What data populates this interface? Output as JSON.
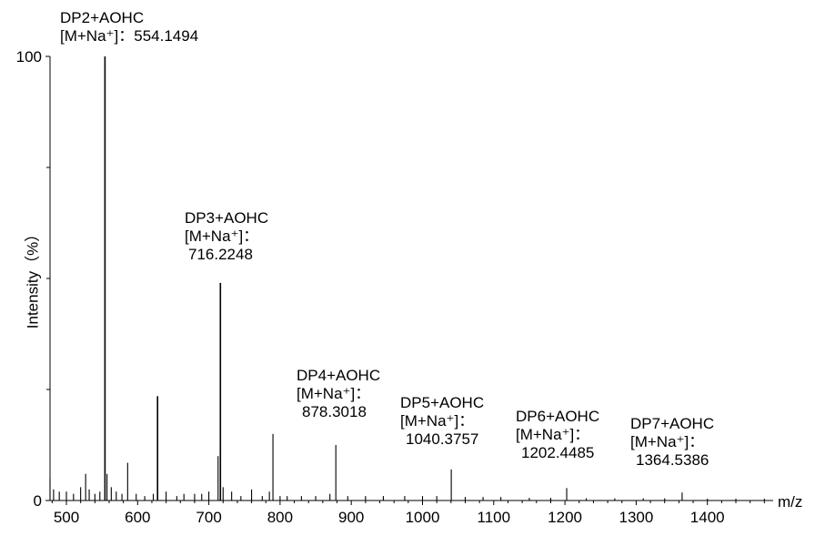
{
  "chart_data": {
    "type": "bar",
    "title": "",
    "xlabel": "m/z",
    "ylabel": "Intensity（%）",
    "xlim": [
      475,
      1495
    ],
    "ylim": [
      0,
      100
    ],
    "grid": false,
    "x_ticks": [
      "500",
      "600",
      "700",
      "800",
      "900",
      "1000",
      "1100",
      "1200",
      "1300",
      "1400"
    ],
    "y_ticks": [
      "0",
      "100"
    ],
    "peaks": [
      {
        "x": 477,
        "y": 5
      },
      {
        "x": 482,
        "y": 2.5
      },
      {
        "x": 490,
        "y": 2
      },
      {
        "x": 500,
        "y": 2
      },
      {
        "x": 510,
        "y": 1.5
      },
      {
        "x": 520,
        "y": 3
      },
      {
        "x": 527,
        "y": 6
      },
      {
        "x": 532,
        "y": 2.5
      },
      {
        "x": 540,
        "y": 1.5
      },
      {
        "x": 547,
        "y": 2
      },
      {
        "x": 554.1494,
        "y": 100
      },
      {
        "x": 557,
        "y": 6
      },
      {
        "x": 563,
        "y": 3
      },
      {
        "x": 570,
        "y": 2
      },
      {
        "x": 578,
        "y": 1.5
      },
      {
        "x": 586,
        "y": 8.5
      },
      {
        "x": 598,
        "y": 1.5
      },
      {
        "x": 610,
        "y": 1
      },
      {
        "x": 622,
        "y": 1.5
      },
      {
        "x": 628,
        "y": 23.5
      },
      {
        "x": 640,
        "y": 2
      },
      {
        "x": 655,
        "y": 1
      },
      {
        "x": 665,
        "y": 1.5
      },
      {
        "x": 680,
        "y": 1.5
      },
      {
        "x": 690,
        "y": 1.5
      },
      {
        "x": 700,
        "y": 2
      },
      {
        "x": 713,
        "y": 10
      },
      {
        "x": 716.2248,
        "y": 49
      },
      {
        "x": 720,
        "y": 3
      },
      {
        "x": 732,
        "y": 2
      },
      {
        "x": 745,
        "y": 1
      },
      {
        "x": 760,
        "y": 2.5
      },
      {
        "x": 775,
        "y": 1
      },
      {
        "x": 785,
        "y": 2
      },
      {
        "x": 790,
        "y": 15
      },
      {
        "x": 800,
        "y": 1
      },
      {
        "x": 810,
        "y": 1
      },
      {
        "x": 830,
        "y": 1
      },
      {
        "x": 850,
        "y": 1
      },
      {
        "x": 870,
        "y": 1.5
      },
      {
        "x": 878.3018,
        "y": 12.5
      },
      {
        "x": 895,
        "y": 1
      },
      {
        "x": 920,
        "y": 1
      },
      {
        "x": 945,
        "y": 1
      },
      {
        "x": 975,
        "y": 1
      },
      {
        "x": 1000,
        "y": 1
      },
      {
        "x": 1020,
        "y": 1
      },
      {
        "x": 1040.3757,
        "y": 7
      },
      {
        "x": 1060,
        "y": 0.8
      },
      {
        "x": 1085,
        "y": 0.8
      },
      {
        "x": 1110,
        "y": 0.8
      },
      {
        "x": 1150,
        "y": 0.6
      },
      {
        "x": 1180,
        "y": 0.6
      },
      {
        "x": 1202.4485,
        "y": 2.8
      },
      {
        "x": 1230,
        "y": 0.5
      },
      {
        "x": 1270,
        "y": 0.5
      },
      {
        "x": 1310,
        "y": 0.5
      },
      {
        "x": 1340,
        "y": 0.5
      },
      {
        "x": 1364.5386,
        "y": 1.8
      },
      {
        "x": 1400,
        "y": 0.4
      },
      {
        "x": 1440,
        "y": 0.4
      },
      {
        "x": 1480,
        "y": 0.4
      }
    ],
    "annotations": [
      {
        "name": "DP2+AOHC",
        "ion": "[M+Na⁺]：",
        "mz": "554.1494"
      },
      {
        "name": "DP3+AOHC",
        "ion": "[M+Na⁺]：",
        "mz": "716.2248"
      },
      {
        "name": "DP4+AOHC",
        "ion": "[M+Na⁺]：",
        "mz": "878.3018"
      },
      {
        "name": "DP5+AOHC",
        "ion": "[M+Na⁺]：",
        "mz": "1040.3757"
      },
      {
        "name": "DP6+AOHC",
        "ion": "[M+Na⁺]：",
        "mz": "1202.4485"
      },
      {
        "name": "DP7+AOHC",
        "ion": "[M+Na⁺]：",
        "mz": "1364.5386"
      }
    ]
  }
}
